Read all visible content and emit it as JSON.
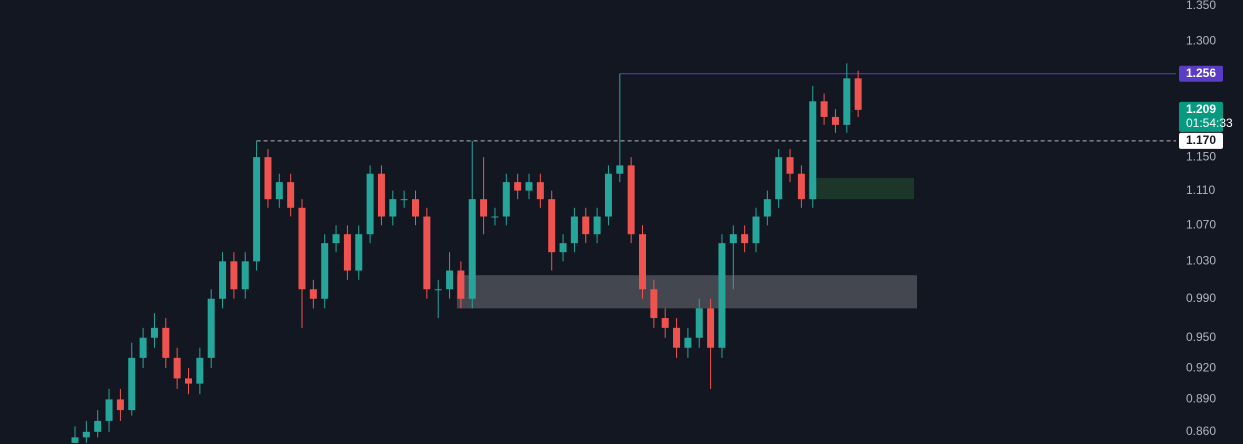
{
  "chart_data": {
    "type": "candlestick",
    "log_scale": true,
    "up_color": "#26a69a",
    "down_color": "#ef5350",
    "open": [
      0.85,
      0.855,
      0.86,
      0.87,
      0.89,
      0.88,
      0.93,
      0.95,
      0.96,
      0.93,
      0.91,
      0.905,
      0.93,
      0.99,
      1.03,
      1.0,
      1.03,
      1.15,
      1.1,
      1.12,
      1.09,
      1.0,
      0.99,
      1.05,
      1.06,
      1.02,
      1.06,
      1.13,
      1.08,
      1.1,
      1.1,
      1.08,
      1.0,
      1.0,
      1.02,
      0.99,
      1.1,
      1.08,
      1.08,
      1.12,
      1.11,
      1.12,
      1.1,
      1.04,
      1.05,
      1.08,
      1.06,
      1.08,
      1.13,
      1.14,
      1.06,
      1.0,
      0.97,
      0.96,
      0.94,
      0.95,
      0.98,
      0.94,
      1.05,
      1.06,
      1.05,
      1.08,
      1.1,
      1.15,
      1.13,
      1.1,
      1.22,
      1.2,
      1.19,
      1.25
    ],
    "high": [
      0.865,
      0.87,
      0.88,
      0.9,
      0.9,
      0.945,
      0.96,
      0.975,
      0.97,
      0.94,
      0.92,
      0.94,
      1.0,
      1.04,
      1.04,
      1.04,
      1.17,
      1.16,
      1.13,
      1.13,
      1.1,
      1.01,
      1.06,
      1.07,
      1.07,
      1.07,
      1.14,
      1.14,
      1.11,
      1.11,
      1.11,
      1.09,
      1.01,
      1.04,
      1.03,
      1.17,
      1.15,
      1.09,
      1.13,
      1.13,
      1.13,
      1.13,
      1.11,
      1.06,
      1.09,
      1.09,
      1.09,
      1.14,
      1.256,
      1.15,
      1.07,
      1.01,
      0.98,
      0.97,
      0.96,
      0.99,
      0.99,
      1.06,
      1.07,
      1.07,
      1.09,
      1.11,
      1.16,
      1.16,
      1.14,
      1.24,
      1.23,
      1.21,
      1.27,
      1.26
    ],
    "low": [
      0.85,
      0.85,
      0.855,
      0.86,
      0.87,
      0.875,
      0.92,
      0.94,
      0.92,
      0.9,
      0.895,
      0.895,
      0.92,
      0.98,
      0.99,
      0.99,
      1.02,
      1.09,
      1.09,
      1.08,
      0.96,
      0.98,
      0.98,
      1.04,
      1.01,
      1.01,
      1.05,
      1.07,
      1.07,
      1.09,
      1.07,
      0.99,
      0.97,
      0.99,
      0.98,
      0.98,
      1.06,
      1.07,
      1.07,
      1.1,
      1.1,
      1.09,
      1.02,
      1.03,
      1.04,
      1.05,
      1.05,
      1.07,
      1.12,
      1.05,
      0.99,
      0.96,
      0.95,
      0.93,
      0.93,
      0.94,
      0.9,
      0.93,
      1.0,
      1.04,
      1.04,
      1.07,
      1.09,
      1.12,
      1.09,
      1.09,
      1.19,
      1.18,
      1.18,
      1.2
    ],
    "close": [
      0.855,
      0.86,
      0.87,
      0.89,
      0.88,
      0.93,
      0.95,
      0.96,
      0.93,
      0.91,
      0.905,
      0.93,
      0.99,
      1.03,
      1.0,
      1.03,
      1.15,
      1.1,
      1.12,
      1.09,
      1.0,
      0.99,
      1.05,
      1.06,
      1.02,
      1.06,
      1.13,
      1.08,
      1.1,
      1.1,
      1.08,
      1.0,
      1.0,
      1.02,
      0.99,
      1.1,
      1.08,
      1.08,
      1.12,
      1.11,
      1.12,
      1.1,
      1.04,
      1.05,
      1.08,
      1.06,
      1.08,
      1.13,
      1.14,
      1.06,
      1.0,
      0.97,
      0.96,
      0.94,
      0.95,
      0.98,
      0.94,
      1.05,
      1.06,
      1.05,
      1.08,
      1.1,
      1.15,
      1.13,
      1.1,
      1.22,
      1.2,
      1.19,
      1.25,
      1.209
    ],
    "ylim": [
      0.849,
      1.358
    ],
    "yticks": [
      {
        "value": 1.35,
        "label": "1.350"
      },
      {
        "value": 1.3,
        "label": "1.300"
      },
      {
        "value": 1.15,
        "label": "1.150"
      },
      {
        "value": 1.11,
        "label": "1.110"
      },
      {
        "value": 1.07,
        "label": "1.070"
      },
      {
        "value": 1.03,
        "label": "1.030"
      },
      {
        "value": 0.99,
        "label": "0.990"
      },
      {
        "value": 0.95,
        "label": "0.950"
      },
      {
        "value": 0.92,
        "label": "0.920"
      },
      {
        "value": 0.89,
        "label": "0.890"
      },
      {
        "value": 0.86,
        "label": "0.860"
      }
    ],
    "zones": [
      {
        "start": 34,
        "from": 0.98,
        "to": 1.015,
        "color": "#4a4c55"
      },
      {
        "start": 65,
        "from": 1.1,
        "to": 1.125,
        "color": "#1e3b2a"
      }
    ],
    "levels": [
      {
        "start": 48,
        "value": 1.256,
        "color": "#5b3cc4",
        "dashed": false
      },
      {
        "start": 16,
        "value": 1.17,
        "color": "#b2b5be",
        "dashed": true
      }
    ],
    "price_labels": [
      {
        "value": 1.256,
        "label": "1.256",
        "color": "#5b3cc4",
        "text_color": "#ffffff"
      },
      {
        "value": 1.209,
        "label": "1.209",
        "color": "#089981",
        "text_color": "#ffffff",
        "countdown": "01:54:33"
      },
      {
        "value": 1.17,
        "label": "1.170",
        "color": "#ffffff",
        "text_color": "#131722"
      }
    ]
  }
}
